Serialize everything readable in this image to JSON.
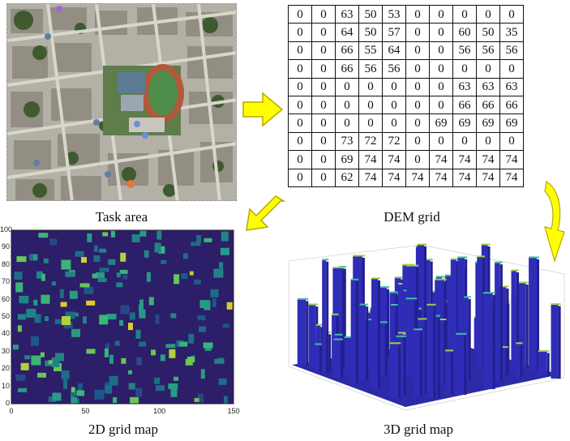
{
  "captions": {
    "task_area": "Task area",
    "dem_grid": "DEM grid",
    "grid_2d": "2D grid map",
    "grid_3d": "3D grid map"
  },
  "dem_grid": [
    [
      0,
      0,
      63,
      50,
      53,
      0,
      0,
      0,
      0,
      0
    ],
    [
      0,
      0,
      64,
      50,
      57,
      0,
      0,
      60,
      50,
      35
    ],
    [
      0,
      0,
      66,
      55,
      64,
      0,
      0,
      56,
      56,
      56
    ],
    [
      0,
      0,
      66,
      56,
      56,
      0,
      0,
      0,
      0,
      0
    ],
    [
      0,
      0,
      0,
      0,
      0,
      0,
      0,
      63,
      63,
      63
    ],
    [
      0,
      0,
      0,
      0,
      0,
      0,
      0,
      66,
      66,
      66
    ],
    [
      0,
      0,
      0,
      0,
      0,
      0,
      69,
      69,
      69,
      69
    ],
    [
      0,
      0,
      73,
      72,
      72,
      0,
      0,
      0,
      0,
      0
    ],
    [
      0,
      0,
      69,
      74,
      74,
      0,
      74,
      74,
      74,
      74
    ],
    [
      0,
      0,
      62,
      74,
      74,
      74,
      74,
      74,
      74,
      74
    ]
  ],
  "map2d_axes": {
    "x_ticks": [
      "0",
      "50",
      "100",
      "150"
    ],
    "y_ticks": [
      "0",
      "10",
      "20",
      "30",
      "40",
      "50",
      "60",
      "70",
      "80",
      "90",
      "100"
    ]
  },
  "colors": {
    "arrow_fill": "#ffff00",
    "arrow_stroke": "#b8a800",
    "map_background": "#2e1f6b"
  }
}
